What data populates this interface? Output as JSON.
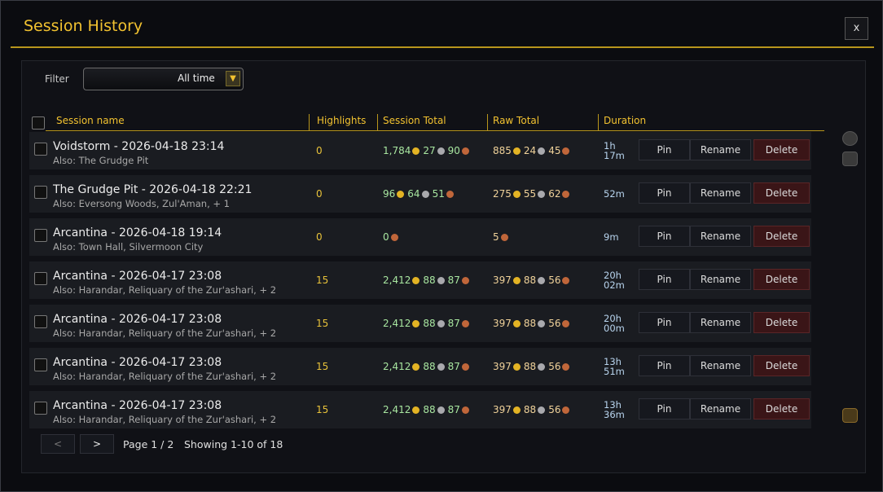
{
  "header": {
    "title": "Session History",
    "close": "x"
  },
  "filter": {
    "label": "Filter",
    "value": "All time"
  },
  "table": {
    "columns": [
      "Session name",
      "Highlights",
      "Session Total",
      "Raw Total",
      "Duration"
    ],
    "actions": [
      "Pin",
      "Rename",
      "Delete"
    ],
    "rows": [
      {
        "name": "Voidstorm - 2026-04-18 23:14",
        "also": "Also: The Grudge Pit",
        "highlights": "0",
        "session_total": [
          {
            "amount": "1,784",
            "coin": "gold"
          },
          {
            "amount": "27",
            "coin": "silver"
          },
          {
            "amount": "90",
            "coin": "copper"
          }
        ],
        "raw_total": [
          {
            "amount": "885",
            "coin": "gold"
          },
          {
            "amount": "24",
            "coin": "silver"
          },
          {
            "amount": "45",
            "coin": "copper"
          }
        ],
        "duration": "1h 17m"
      },
      {
        "name": "The Grudge Pit - 2026-04-18 22:21",
        "also": "Also: Eversong Woods, Zul'Aman, + 1",
        "highlights": "0",
        "session_total": [
          {
            "amount": "96",
            "coin": "gold"
          },
          {
            "amount": "64",
            "coin": "silver"
          },
          {
            "amount": "51",
            "coin": "copper"
          }
        ],
        "raw_total": [
          {
            "amount": "275",
            "coin": "gold"
          },
          {
            "amount": "55",
            "coin": "silver"
          },
          {
            "amount": "62",
            "coin": "copper"
          }
        ],
        "duration": "52m"
      },
      {
        "name": "Arcantina - 2026-04-18 19:14",
        "also": "Also: Town Hall, Silvermoon City",
        "highlights": "0",
        "session_total": [
          {
            "amount": "0",
            "coin": "copper"
          }
        ],
        "raw_total": [
          {
            "amount": "5",
            "coin": "copper"
          }
        ],
        "duration": "9m"
      },
      {
        "name": "Arcantina - 2026-04-17 23:08",
        "also": "Also: Harandar, Reliquary of the Zur'ashari, + 2",
        "highlights": "15",
        "session_total": [
          {
            "amount": "2,412",
            "coin": "gold"
          },
          {
            "amount": "88",
            "coin": "silver"
          },
          {
            "amount": "87",
            "coin": "copper"
          }
        ],
        "raw_total": [
          {
            "amount": "397",
            "coin": "gold"
          },
          {
            "amount": "88",
            "coin": "silver"
          },
          {
            "amount": "56",
            "coin": "copper"
          }
        ],
        "duration": "20h 02m"
      },
      {
        "name": "Arcantina - 2026-04-17 23:08",
        "also": "Also: Harandar, Reliquary of the Zur'ashari, + 2",
        "highlights": "15",
        "session_total": [
          {
            "amount": "2,412",
            "coin": "gold"
          },
          {
            "amount": "88",
            "coin": "silver"
          },
          {
            "amount": "87",
            "coin": "copper"
          }
        ],
        "raw_total": [
          {
            "amount": "397",
            "coin": "gold"
          },
          {
            "amount": "88",
            "coin": "silver"
          },
          {
            "amount": "56",
            "coin": "copper"
          }
        ],
        "duration": "20h 00m"
      },
      {
        "name": "Arcantina - 2026-04-17 23:08",
        "also": "Also: Harandar, Reliquary of the Zur'ashari, + 2",
        "highlights": "15",
        "session_total": [
          {
            "amount": "2,412",
            "coin": "gold"
          },
          {
            "amount": "88",
            "coin": "silver"
          },
          {
            "amount": "87",
            "coin": "copper"
          }
        ],
        "raw_total": [
          {
            "amount": "397",
            "coin": "gold"
          },
          {
            "amount": "88",
            "coin": "silver"
          },
          {
            "amount": "56",
            "coin": "copper"
          }
        ],
        "duration": "13h 51m"
      },
      {
        "name": "Arcantina - 2026-04-17 23:08",
        "also": "Also: Harandar, Reliquary of the Zur'ashari, + 2",
        "highlights": "15",
        "session_total": [
          {
            "amount": "2,412",
            "coin": "gold"
          },
          {
            "amount": "88",
            "coin": "silver"
          },
          {
            "amount": "87",
            "coin": "copper"
          }
        ],
        "raw_total": [
          {
            "amount": "397",
            "coin": "gold"
          },
          {
            "amount": "88",
            "coin": "silver"
          },
          {
            "amount": "56",
            "coin": "copper"
          }
        ],
        "duration": "13h 36m"
      }
    ]
  },
  "pagination": {
    "prev": "<",
    "next": ">",
    "page": "Page 1 / 2",
    "showing": "Showing 1-10 of 18"
  }
}
